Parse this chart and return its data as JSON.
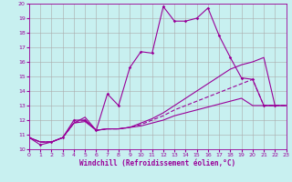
{
  "background_color": "#c8f0f0",
  "line_color": "#990099",
  "ylim": [
    10,
    20
  ],
  "xlim": [
    0,
    23
  ],
  "yticks": [
    10,
    11,
    12,
    13,
    14,
    15,
    16,
    17,
    18,
    19,
    20
  ],
  "xticks": [
    0,
    1,
    2,
    3,
    4,
    5,
    6,
    7,
    8,
    9,
    10,
    11,
    12,
    13,
    14,
    15,
    16,
    17,
    18,
    19,
    20,
    21,
    22,
    23
  ],
  "xlabel": "Windchill (Refroidissement éolien,°C)",
  "line1_x": [
    0,
    1,
    2,
    3,
    4,
    5,
    6,
    7,
    8,
    9,
    10,
    11,
    12,
    13,
    14,
    15,
    16,
    17,
    18,
    19,
    20,
    21,
    22
  ],
  "line1_y": [
    10.8,
    10.3,
    10.5,
    10.8,
    12.0,
    12.0,
    11.3,
    13.8,
    13.0,
    15.6,
    16.7,
    16.6,
    19.8,
    18.8,
    18.8,
    19.0,
    19.7,
    17.8,
    16.3,
    14.9,
    14.8,
    13.0,
    13.0
  ],
  "line2_x": [
    0,
    1,
    2,
    3,
    4,
    5,
    6,
    7,
    8,
    9,
    10,
    11,
    12,
    13,
    14,
    15,
    16,
    17,
    18,
    19,
    20,
    21,
    22,
    23
  ],
  "line2_y": [
    10.8,
    10.5,
    10.5,
    10.8,
    11.8,
    12.2,
    11.3,
    11.4,
    11.4,
    11.5,
    11.8,
    12.1,
    12.5,
    13.0,
    13.5,
    14.0,
    14.5,
    15.0,
    15.5,
    15.8,
    16.0,
    16.3,
    13.0,
    13.0
  ],
  "line3_x": [
    0,
    1,
    2,
    3,
    4,
    5,
    6,
    7,
    8,
    9,
    10,
    11,
    12,
    13,
    14,
    15,
    16,
    17,
    18,
    19,
    20,
    21,
    22,
    23
  ],
  "line3_y": [
    10.8,
    10.5,
    10.5,
    10.8,
    11.8,
    12.0,
    11.3,
    11.4,
    11.4,
    11.5,
    11.7,
    12.0,
    12.3,
    12.7,
    13.0,
    13.3,
    13.6,
    13.9,
    14.2,
    14.5,
    14.8,
    13.0,
    13.0,
    13.0
  ],
  "line4_x": [
    0,
    1,
    2,
    3,
    4,
    5,
    6,
    7,
    8,
    9,
    10,
    11,
    12,
    13,
    14,
    15,
    16,
    17,
    18,
    19,
    20,
    21,
    22,
    23
  ],
  "line4_y": [
    10.8,
    10.5,
    10.5,
    10.8,
    11.8,
    11.9,
    11.3,
    11.4,
    11.4,
    11.5,
    11.6,
    11.8,
    12.0,
    12.3,
    12.5,
    12.7,
    12.9,
    13.1,
    13.3,
    13.5,
    13.0,
    13.0,
    13.0,
    13.0
  ]
}
